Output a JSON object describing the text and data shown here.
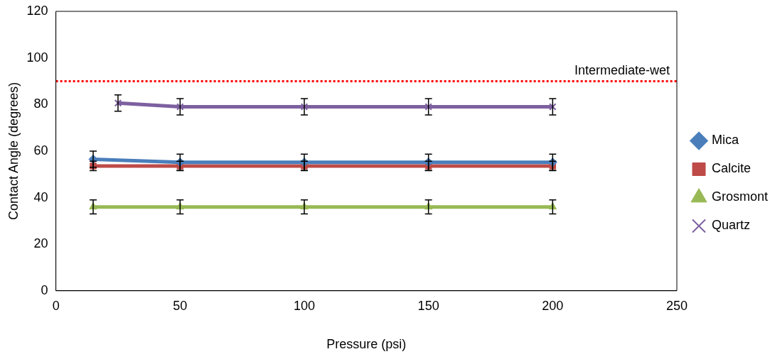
{
  "chart_data": {
    "type": "line",
    "xlabel": "Pressure (psi)",
    "ylabel": "Contact Angle (degrees)",
    "xlim": [
      0,
      250
    ],
    "xticks": [
      0,
      50,
      100,
      150,
      200,
      250
    ],
    "ylim": [
      0,
      120
    ],
    "yticks": [
      0,
      20,
      40,
      60,
      80,
      100,
      120
    ],
    "grid": false,
    "legend": "right",
    "series": [
      {
        "name": "Mica",
        "color": "#4a7ebb",
        "marker": "diamond",
        "x": [
          15,
          50,
          100,
          150,
          200
        ],
        "values": [
          56.5,
          55.2,
          55.2,
          55.2,
          55.2
        ],
        "errors": [
          3.5,
          3.5,
          3.5,
          3.5,
          3.5
        ]
      },
      {
        "name": "Calcite",
        "color": "#be4b48",
        "marker": "square",
        "x": [
          15,
          50,
          100,
          150,
          200
        ],
        "values": [
          53.6,
          53.6,
          53.6,
          53.6,
          53.6
        ],
        "errors": [
          2,
          2,
          2,
          2,
          2
        ]
      },
      {
        "name": "Grosmont",
        "color": "#98b954",
        "marker": "triangle",
        "x": [
          15,
          50,
          100,
          150,
          200
        ],
        "values": [
          36,
          36,
          36,
          36,
          36
        ],
        "errors": [
          3,
          3,
          3,
          3,
          3
        ]
      },
      {
        "name": "Quartz",
        "color": "#7d60a0",
        "marker": "cross",
        "x": [
          25,
          50,
          100,
          150,
          200
        ],
        "values": [
          80.6,
          79,
          79,
          79,
          79
        ],
        "errors": [
          3.5,
          3.5,
          3.5,
          3.5,
          3.5
        ]
      }
    ],
    "ref_lines": [
      {
        "axis": "y",
        "value": 90,
        "label": "Intermediate-wet",
        "color": "#ff0000",
        "line_style": "dotted"
      }
    ]
  }
}
